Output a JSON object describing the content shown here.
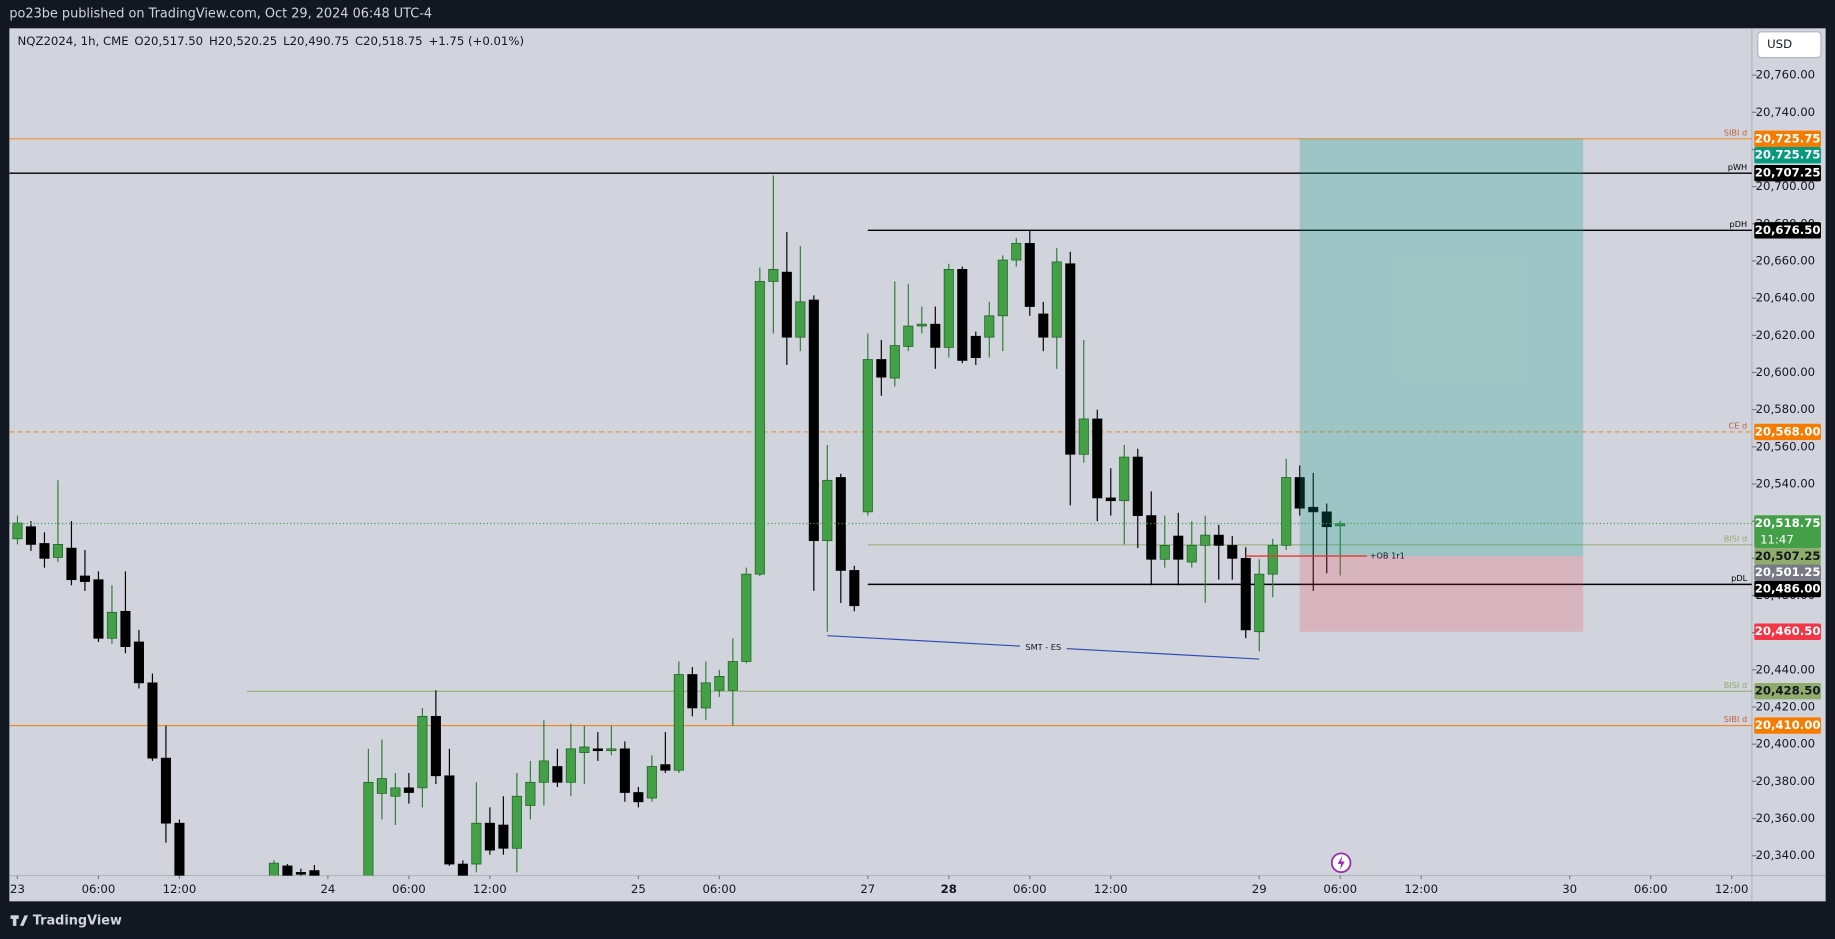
{
  "chart_data": {
    "type": "candlestick",
    "header": "po23be published on TradingView.com, Oct 29, 2024 06:48 UTC-4",
    "legend": [
      "NQZ2024, 1h, CME",
      "O20,517.50",
      "H20,520.25",
      "L20,490.75",
      "C20,518.75",
      "+1.75 (+0.01%)"
    ],
    "currency": "USD",
    "brand": "TradingView",
    "up_color": "#43a047",
    "down_color": "#000000",
    "x": [
      0,
      1,
      2,
      3,
      4,
      5,
      6,
      7,
      8,
      9,
      10,
      11,
      12,
      19,
      20,
      21,
      22,
      26,
      27,
      28,
      29,
      30,
      31,
      32,
      33,
      34,
      35,
      36,
      37,
      38,
      39,
      40,
      41,
      42,
      43,
      44,
      45,
      46,
      47,
      48,
      49,
      50,
      51,
      52,
      53,
      54,
      55,
      56,
      57,
      58,
      59,
      60,
      61,
      62,
      63,
      64,
      65,
      66,
      67,
      68,
      69,
      70,
      71,
      72,
      73,
      74,
      75,
      76,
      77,
      78,
      79,
      80,
      81,
      82,
      83,
      84,
      85,
      86,
      87,
      88,
      89,
      90,
      91,
      92,
      93,
      94,
      95,
      96,
      97,
      98
    ],
    "open": [
      20510.5,
      20517,
      20508,
      20500.5,
      20505.5,
      20490.5,
      20488.5,
      20457,
      20471.5,
      20455,
      20433,
      20392.5,
      20357.5,
      20322,
      20334.5,
      20331,
      20332,
      20318,
      20373.5,
      20372,
      20376.5,
      20376.5,
      20415,
      20383,
      20335.5,
      20335.5,
      20357.5,
      20356.5,
      20344,
      20367,
      20379.5,
      20388,
      20379.5,
      20395.5,
      20397.5,
      20396.5,
      20397.5,
      20374,
      20371,
      20389,
      20386,
      20437.5,
      20419.5,
      20429,
      20429,
      20444.5,
      20491.5,
      20649,
      20654,
      20619,
      20639,
      20509.5,
      20543.5,
      20493.5,
      20525,
      20607,
      20597,
      20614,
      20625,
      20626,
      20613.5,
      20655.5,
      20619.5,
      20619,
      20630.5,
      20660.5,
      20669.5,
      20631.5,
      20619,
      20658.5,
      20556,
      20575,
      20532.5,
      20531,
      20554.5,
      20523,
      20499.5,
      20512,
      20498,
      20507,
      20512.5,
      20507,
      20500,
      20460.5,
      20491.5,
      20507,
      20543.5,
      20527.5,
      20525,
      20517.5
    ],
    "high": [
      20523,
      20520,
      20514,
      20542,
      20520,
      20504.5,
      20493,
      20485.5,
      20493,
      20461.5,
      20438,
      20410,
      20359.5,
      20337.5,
      20335.5,
      20333,
      20335,
      20397.5,
      20402.5,
      20384.5,
      20384.5,
      20419.5,
      20429,
      20397.5,
      20337.5,
      20379.5,
      20366,
      20372,
      20384.5,
      20391,
      20413,
      20397.5,
      20411,
      20410,
      20406.5,
      20410,
      20401.5,
      20377,
      20394,
      20406.5,
      20444.5,
      20441.5,
      20444.5,
      20440,
      20457,
      20495,
      20656.5,
      20706,
      20675.5,
      20668,
      20641.5,
      20561,
      20545.5,
      20496,
      20621,
      20617.5,
      20649,
      20647.5,
      20635.5,
      20635.5,
      20658.5,
      20657,
      20622,
      20638,
      20663,
      20672.5,
      20676.5,
      20638,
      20667,
      20665,
      20617.5,
      20580,
      20548.5,
      20561,
      20559,
      20536,
      20523,
      20524.5,
      20520,
      20523,
      20518,
      20512,
      20506,
      20499.5,
      20510.5,
      20553.5,
      20550,
      20546,
      20529.5,
      20520.25
    ],
    "low": [
      20507.5,
      20504,
      20495,
      20498,
      20485.5,
      20482.5,
      20455,
      20454,
      20449,
      20430,
      20391,
      20347,
      20305,
      20315,
      20318,
      20320,
      20320,
      20308,
      20359.5,
      20356.5,
      20368,
      20366,
      20378.5,
      20334.5,
      20312,
      20331,
      20340.5,
      20340.5,
      20331,
      20359.5,
      20367,
      20377,
      20372,
      20378.5,
      20391,
      20394,
      20369,
      20366,
      20369,
      20384.5,
      20384.5,
      20415,
      20413,
      20425.5,
      20410,
      20443.5,
      20490.5,
      20621,
      20604,
      20611.5,
      20482.5,
      20460.5,
      20476,
      20471.5,
      20523,
      20587.5,
      20592.5,
      20611.5,
      20621,
      20602,
      20608,
      20605,
      20604,
      20608,
      20611.5,
      20657,
      20630.5,
      20611.5,
      20602,
      20528.5,
      20551.5,
      20520,
      20523,
      20507.5,
      20505.5,
      20485.5,
      20495,
      20485.5,
      20495,
      20476,
      20488.5,
      20488.5,
      20457,
      20450,
      20479,
      20504.5,
      20523,
      20482.5,
      20492,
      20490.75
    ],
    "close": [
      20519,
      20507.5,
      20500,
      20507.5,
      20488.5,
      20487.5,
      20457,
      20471,
      20452.5,
      20433,
      20392.5,
      20357.5,
      20318,
      20336,
      20325,
      20330,
      20326,
      20379.5,
      20381.5,
      20376.5,
      20374,
      20415,
      20383,
      20335.5,
      20322,
      20357.5,
      20343,
      20344,
      20372,
      20379.5,
      20391,
      20379.5,
      20397.5,
      20398.5,
      20396.5,
      20397.5,
      20374,
      20369,
      20388,
      20386,
      20437.5,
      20419.5,
      20433,
      20436.5,
      20444.5,
      20491.5,
      20649,
      20655.5,
      20619,
      20638,
      20509.5,
      20542,
      20493.5,
      20474.5,
      20607,
      20597.5,
      20614.5,
      20625,
      20626,
      20613.5,
      20655.5,
      20606.5,
      20608,
      20630.5,
      20660.5,
      20669.5,
      20635.5,
      20619,
      20659.5,
      20556,
      20575,
      20532.5,
      20531,
      20554.5,
      20523,
      20499.5,
      20507,
      20499.5,
      20507,
      20512.5,
      20507,
      20500,
      20461.5,
      20491.5,
      20507,
      20543.5,
      20527,
      20525,
      20517,
      20518.75
    ],
    "xlim": [
      -0.6,
      128.5
    ],
    "xticks": [
      {
        "value": 0,
        "label": "23"
      },
      {
        "value": 6,
        "label": "06:00"
      },
      {
        "value": 12,
        "label": "12:00"
      },
      {
        "value": 23,
        "label": "24"
      },
      {
        "value": 29,
        "label": "06:00"
      },
      {
        "value": 35,
        "label": "12:00"
      },
      {
        "value": 46,
        "label": "25"
      },
      {
        "value": 52,
        "label": "06:00"
      },
      {
        "value": 63,
        "label": "27"
      },
      {
        "value": 69,
        "label": "28",
        "bold": true
      },
      {
        "value": 75,
        "label": "06:00"
      },
      {
        "value": 81,
        "label": "12:00"
      },
      {
        "value": 92,
        "label": "29"
      },
      {
        "value": 98,
        "label": "06:00"
      },
      {
        "value": 104,
        "label": "12:00"
      },
      {
        "value": 115,
        "label": "30"
      },
      {
        "value": 121,
        "label": "06:00"
      },
      {
        "value": 127,
        "label": "12:00"
      }
    ],
    "ylim": [
      20329.3,
      20785.2
    ],
    "yticks": [
      {
        "value": 20340,
        "label": "20,340.00"
      },
      {
        "value": 20360,
        "label": "20,360.00"
      },
      {
        "value": 20380,
        "label": "20,380.00"
      },
      {
        "value": 20400,
        "label": "20,400.00"
      },
      {
        "value": 20420,
        "label": "20,420.00"
      },
      {
        "value": 20440,
        "label": "20,440.00"
      },
      {
        "value": 20460,
        "label": "20,460.00"
      },
      {
        "value": 20480,
        "label": "20,480.00"
      },
      {
        "value": 20500,
        "label": "20,500.00"
      },
      {
        "value": 20520,
        "label": "20,520.00"
      },
      {
        "value": 20540,
        "label": "20,540.00"
      },
      {
        "value": 20560,
        "label": "20,560.00"
      },
      {
        "value": 20580,
        "label": "20,580.00"
      },
      {
        "value": 20600,
        "label": "20,600.00"
      },
      {
        "value": 20620,
        "label": "20,620.00"
      },
      {
        "value": 20640,
        "label": "20,640.00"
      },
      {
        "value": 20660,
        "label": "20,660.00"
      },
      {
        "value": 20680,
        "label": "20,680.00"
      },
      {
        "value": 20700,
        "label": "20,700.00"
      },
      {
        "value": 20720,
        "label": "20,720.00"
      },
      {
        "value": 20740,
        "label": "20,740.00"
      },
      {
        "value": 20760,
        "label": "20,760.00"
      }
    ],
    "grid": false,
    "levels": [
      {
        "name": "SIBI d",
        "value": 20725.75,
        "label": "20,725.75",
        "color": "#f57c00"
      },
      {
        "name": "pWH",
        "value": 20707.25,
        "label": "20,707.25",
        "color": "#000000"
      },
      {
        "name": "pDH",
        "value": 20676.5,
        "label": "20,676.50",
        "color": "#000000",
        "start": 63
      },
      {
        "name": "CE d",
        "value": 20568,
        "label": "20,568.00",
        "color": "#f57c00",
        "dashed": true
      },
      {
        "name": "BISI d",
        "value": 20507.25,
        "label": "20,507.25",
        "color": "#8fac6c",
        "start": 63
      },
      {
        "name": "pDL",
        "value": 20486,
        "label": "20,486.00",
        "color": "#000000",
        "start": 63
      },
      {
        "name": "BISI d",
        "value": 20428.5,
        "label": "20,428.50",
        "color": "#8fac6c",
        "start": 17
      },
      {
        "name": "SIBI d",
        "value": 20410,
        "label": "20,410.00",
        "color": "#f57c00"
      }
    ],
    "current": {
      "value": 20518.75,
      "label": "20,518.75",
      "countdown": "11:47",
      "color": "#43a047"
    },
    "position": {
      "start": 95,
      "end": 116,
      "target": 20725.75,
      "target_label": "20,725.75",
      "target_color": "#089981",
      "entry": 20501.25,
      "entry_label": "20,501.25",
      "entry_color": "#787b86",
      "stop": 20460.5,
      "stop_label": "20,460.50",
      "stop_color": "#f23645"
    },
    "order_block": {
      "name": "+OB 1r1",
      "start": 91,
      "end": 100,
      "color": "#e53935"
    },
    "smt": {
      "label": "SMT - ES",
      "x": [
        60,
        92
      ],
      "y": [
        20458.4,
        20445.8
      ],
      "color": "#2f4eb3"
    }
  }
}
